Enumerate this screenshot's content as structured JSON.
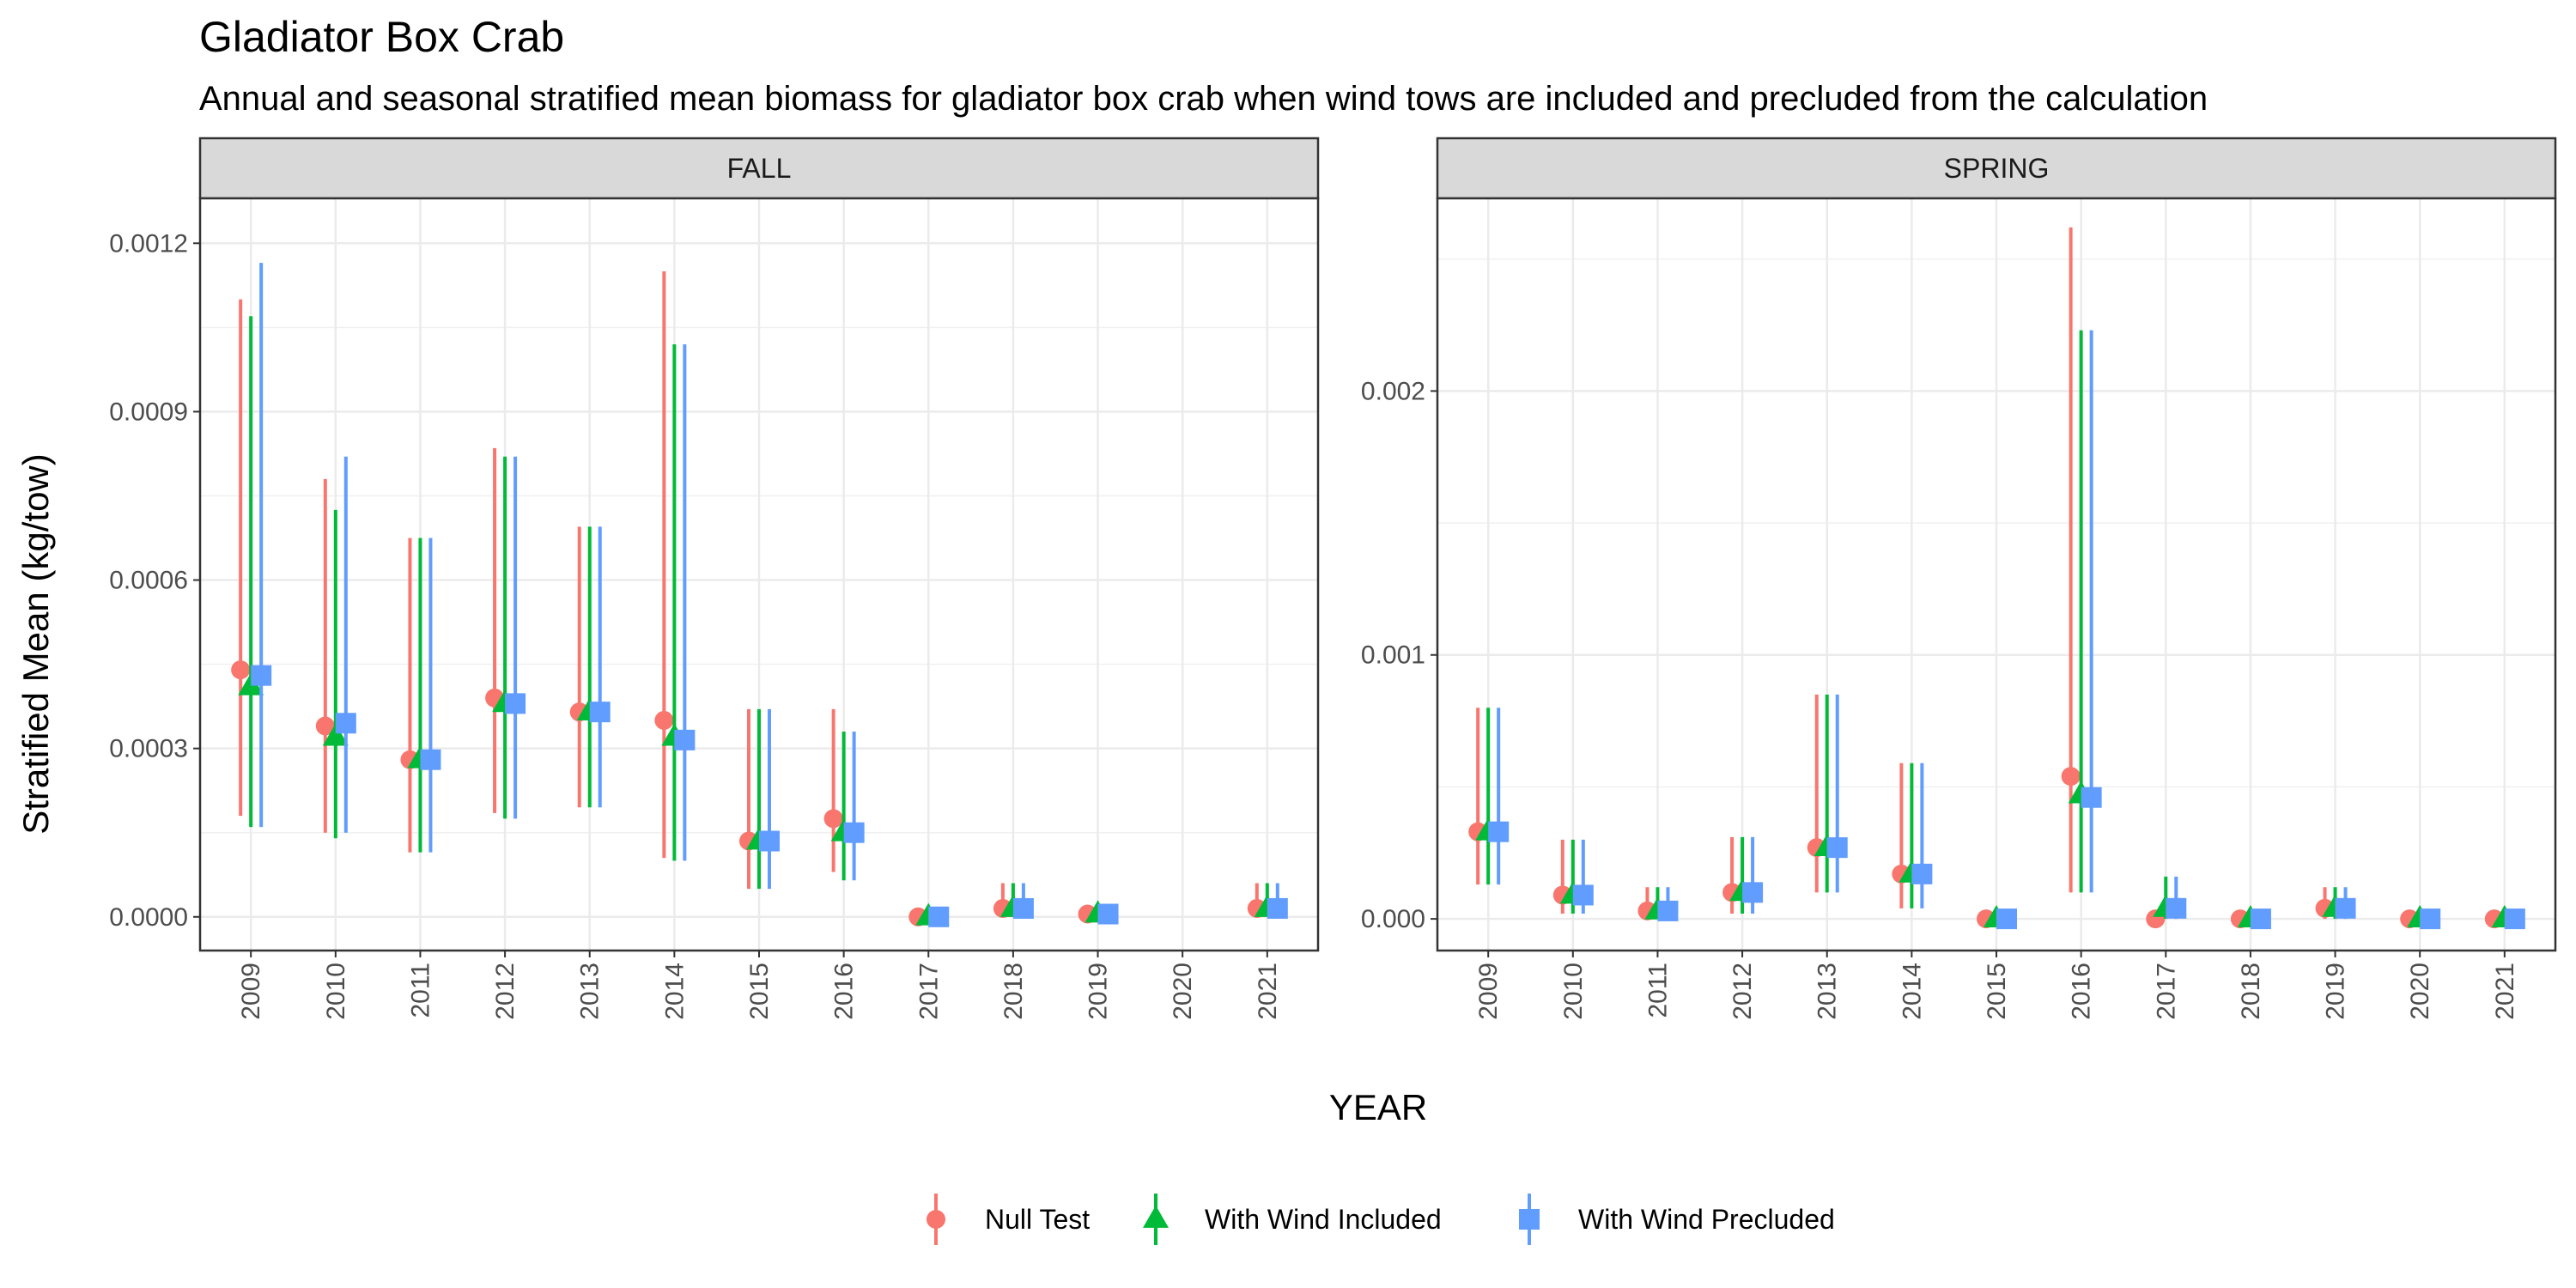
{
  "chart_data": {
    "type": "scatter",
    "title": "Gladiator Box Crab",
    "subtitle": "Annual and seasonal stratified mean biomass for gladiator box crab when wind tows are included and precluded from the calculation",
    "xlabel": "YEAR",
    "ylabel": "Stratified Mean (kg/tow)",
    "categories": [
      "2009",
      "2010",
      "2011",
      "2012",
      "2013",
      "2014",
      "2015",
      "2016",
      "2017",
      "2018",
      "2019",
      "2020",
      "2021"
    ],
    "legend": {
      "placement": "bottom",
      "entries": [
        {
          "name": "Null Test",
          "color": "#F8766D",
          "shape": "circle"
        },
        {
          "name": "With Wind Included",
          "color": "#00BA38",
          "shape": "triangle"
        },
        {
          "name": "With Wind Precluded",
          "color": "#619CFF",
          "shape": "square"
        }
      ]
    },
    "panels": [
      {
        "label": "FALL",
        "ylim": [
          -6e-05,
          0.00128
        ],
        "yticks": [
          0,
          0.0003,
          0.0006,
          0.0009,
          0.0012
        ],
        "ytick_labels": [
          "0.0000",
          "0.0003",
          "0.0006",
          "0.0009",
          "0.0012"
        ],
        "series": [
          {
            "name": "Null Test",
            "y": [
              0.00044,
              0.00034,
              0.00028,
              0.00039,
              0.000365,
              0.00035,
              0.000135,
              0.000175,
              0.0,
              1.5e-05,
              5e-06,
              null,
              1.5e-05
            ],
            "low": [
              0.00018,
              0.00015,
              0.000115,
              0.000185,
              0.000195,
              0.000105,
              5e-05,
              8e-05,
              0.0,
              0.0,
              0.0,
              null,
              0.0
            ],
            "high": [
              0.0011,
              0.00078,
              0.000675,
              0.000835,
              0.000695,
              0.00115,
              0.00037,
              0.00037,
              0.0,
              6e-05,
              2e-05,
              null,
              6e-05
            ]
          },
          {
            "name": "With Wind Included",
            "y": [
              0.00041,
              0.00032,
              0.00028,
              0.00038,
              0.000365,
              0.00032,
              0.000135,
              0.00015,
              0.0,
              1.5e-05,
              5e-06,
              null,
              1.5e-05
            ],
            "low": [
              0.00016,
              0.00014,
              0.000115,
              0.000175,
              0.000195,
              0.0001,
              5e-05,
              6.5e-05,
              0.0,
              0.0,
              0.0,
              null,
              0.0
            ],
            "high": [
              0.00107,
              0.000725,
              0.000675,
              0.00082,
              0.000695,
              0.00102,
              0.00037,
              0.00033,
              0.0,
              6e-05,
              2e-05,
              null,
              6e-05
            ]
          },
          {
            "name": "With Wind Precluded",
            "y": [
              0.00043,
              0.000345,
              0.00028,
              0.00038,
              0.000365,
              0.000315,
              0.000135,
              0.00015,
              0.0,
              1.5e-05,
              5e-06,
              null,
              1.5e-05
            ],
            "low": [
              0.00016,
              0.00015,
              0.000115,
              0.000175,
              0.000195,
              0.0001,
              5e-05,
              6.5e-05,
              0.0,
              0.0,
              0.0,
              null,
              0.0
            ],
            "high": [
              0.001165,
              0.00082,
              0.000675,
              0.00082,
              0.000695,
              0.00102,
              0.00037,
              0.00033,
              0.0,
              6e-05,
              2e-05,
              null,
              6e-05
            ]
          }
        ]
      },
      {
        "label": "SPRING",
        "ylim": [
          -0.00012,
          0.00273
        ],
        "yticks": [
          0,
          0.001,
          0.002
        ],
        "ytick_labels": [
          "0.000",
          "0.001",
          "0.002"
        ],
        "series": [
          {
            "name": "Null Test",
            "y": [
              0.00033,
              9e-05,
              3e-05,
              0.0001,
              0.00027,
              0.00017,
              0.0,
              0.00054,
              0.0,
              0.0,
              4e-05,
              0.0,
              0.0
            ],
            "low": [
              0.00013,
              2e-05,
              0.0,
              2e-05,
              0.0001,
              4e-05,
              0.0,
              0.0001,
              0.0,
              0.0,
              0.0,
              0.0,
              0.0
            ],
            "high": [
              0.0008,
              0.0003,
              0.00012,
              0.00031,
              0.00085,
              0.00059,
              0.0,
              0.00262,
              0.0,
              0.0,
              0.00012,
              0.0,
              0.0
            ]
          },
          {
            "name": "With Wind Included",
            "y": [
              0.00033,
              9e-05,
              3e-05,
              0.0001,
              0.00027,
              0.00017,
              0.0,
              0.00047,
              4e-05,
              0.0,
              4e-05,
              0.0,
              0.0
            ],
            "low": [
              0.00013,
              2e-05,
              0.0,
              2e-05,
              0.0001,
              4e-05,
              0.0,
              0.0001,
              0.0,
              0.0,
              0.0,
              0.0,
              0.0
            ],
            "high": [
              0.0008,
              0.0003,
              0.00012,
              0.00031,
              0.00085,
              0.00059,
              0.0,
              0.00223,
              0.00016,
              0.0,
              0.00012,
              0.0,
              0.0
            ]
          },
          {
            "name": "With Wind Precluded",
            "y": [
              0.00033,
              9e-05,
              3e-05,
              0.0001,
              0.00027,
              0.00017,
              0.0,
              0.00046,
              4e-05,
              0.0,
              4e-05,
              0.0,
              0.0
            ],
            "low": [
              0.00013,
              2e-05,
              0.0,
              2e-05,
              0.0001,
              4e-05,
              0.0,
              0.0001,
              0.0,
              0.0,
              0.0,
              0.0,
              0.0
            ],
            "high": [
              0.0008,
              0.0003,
              0.00012,
              0.00031,
              0.00085,
              0.00059,
              0.0,
              0.00223,
              0.00016,
              0.0,
              0.00012,
              0.0,
              0.0
            ]
          }
        ]
      }
    ]
  }
}
